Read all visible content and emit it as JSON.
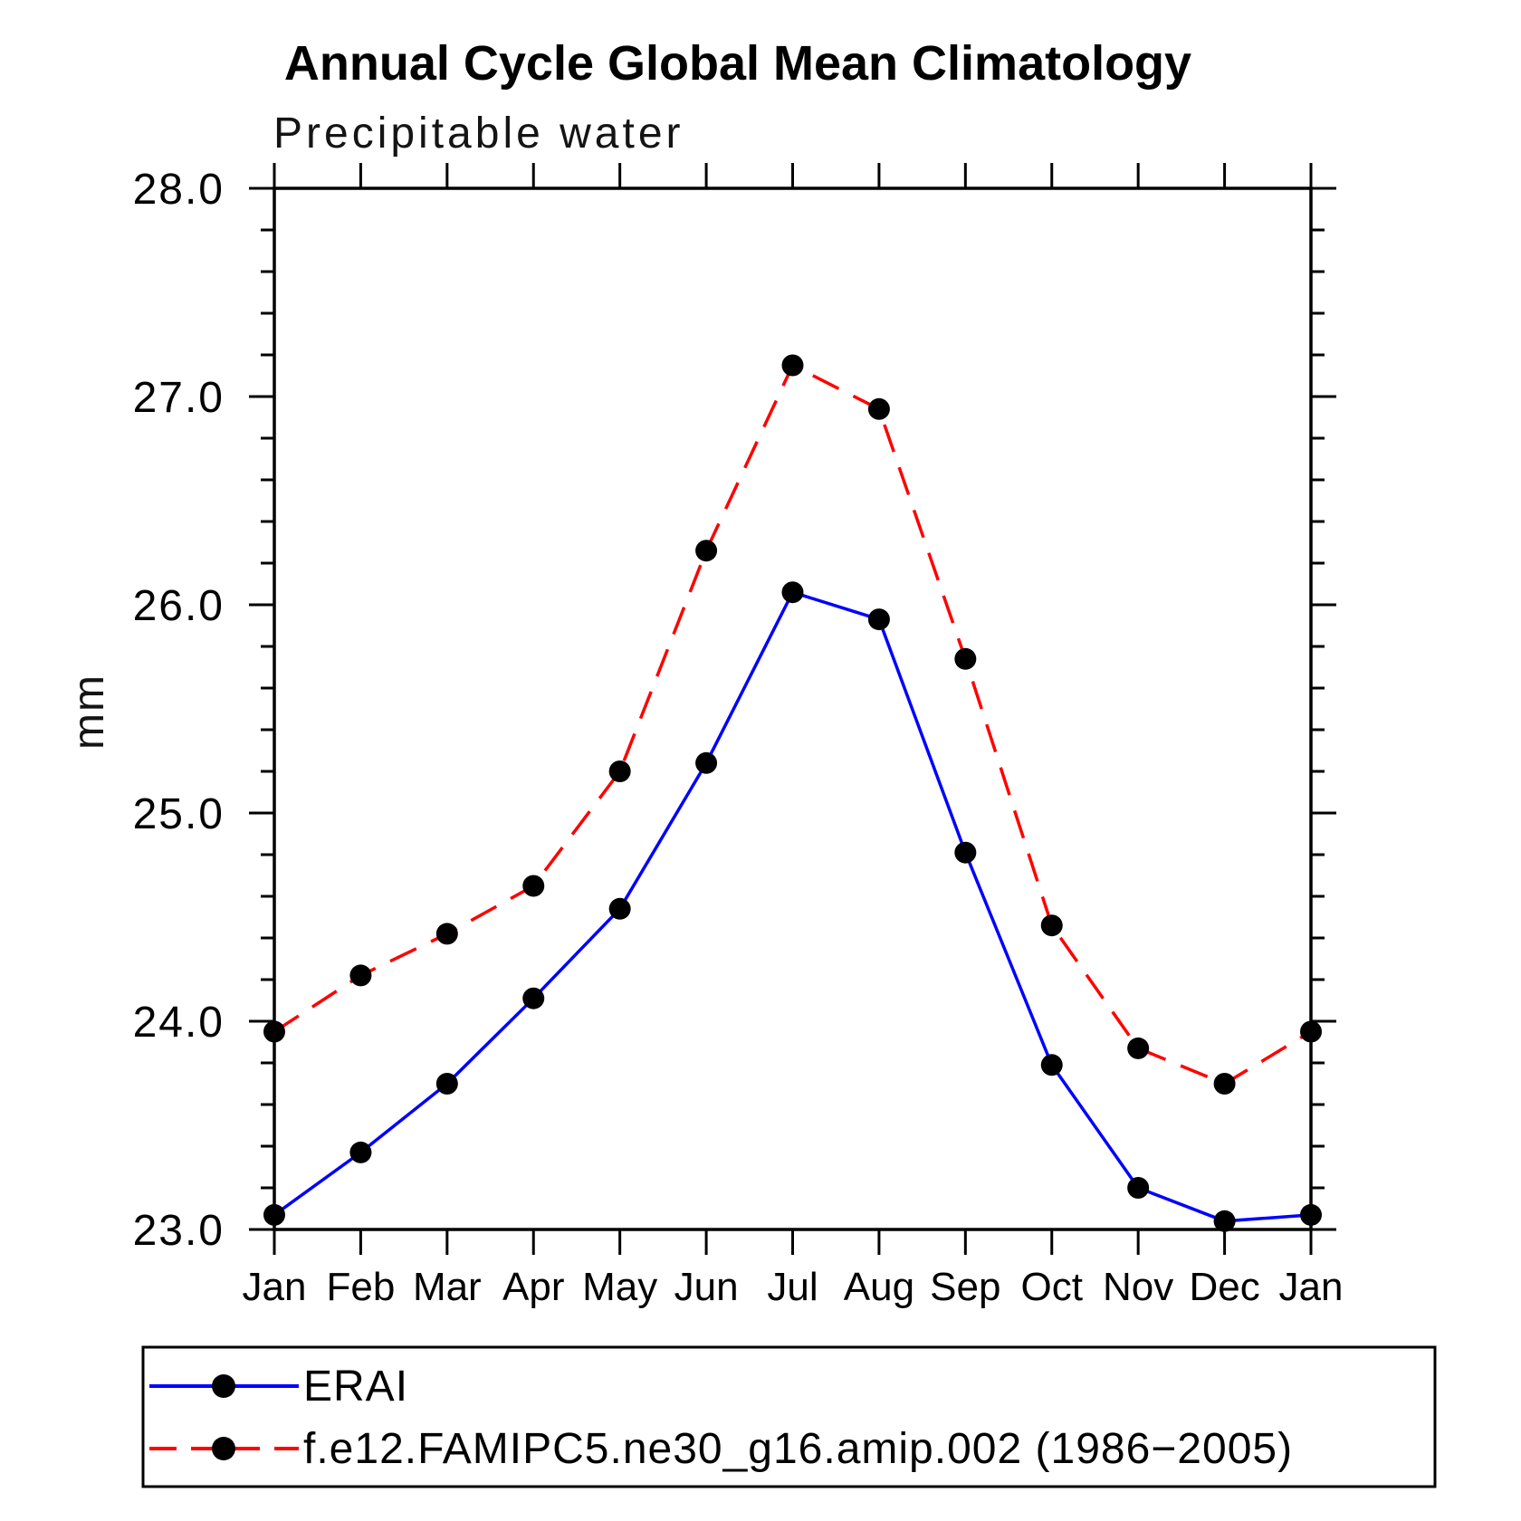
{
  "title": "Annual Cycle Global Mean Climatology",
  "subtitle": "Precipitable water",
  "chart_data": {
    "type": "line",
    "categories": [
      "Jan",
      "Feb",
      "Mar",
      "Apr",
      "May",
      "Jun",
      "Jul",
      "Aug",
      "Sep",
      "Oct",
      "Nov",
      "Dec",
      "Jan"
    ],
    "xlabel": "",
    "ylabel": "mm",
    "ylim": [
      23.0,
      28.0
    ],
    "ytick_major_interval": 1.0,
    "ytick_minor_interval": 0.2,
    "ytick_labels": [
      "23.0",
      "24.0",
      "25.0",
      "26.0",
      "27.0",
      "28.0"
    ],
    "grid": false,
    "legend_position": "bottom",
    "marker_color": "#000000",
    "axis_color": "#000000",
    "series": [
      {
        "name": "ERAI",
        "color": "#0000ff",
        "line_style": "solid",
        "marker": "filled-circle",
        "values": [
          23.07,
          23.37,
          23.7,
          24.11,
          24.54,
          25.24,
          26.06,
          25.93,
          24.81,
          23.79,
          23.2,
          23.04,
          23.07
        ]
      },
      {
        "name": "f.e12.FAMIPC5.ne30_g16.amip.002 (1986−2005)",
        "color": "#ff0000",
        "line_style": "dashed",
        "marker": "filled-circle",
        "values": [
          23.95,
          24.22,
          24.42,
          24.65,
          25.2,
          26.26,
          27.15,
          26.94,
          25.74,
          24.46,
          23.87,
          23.7,
          23.95
        ]
      }
    ]
  }
}
